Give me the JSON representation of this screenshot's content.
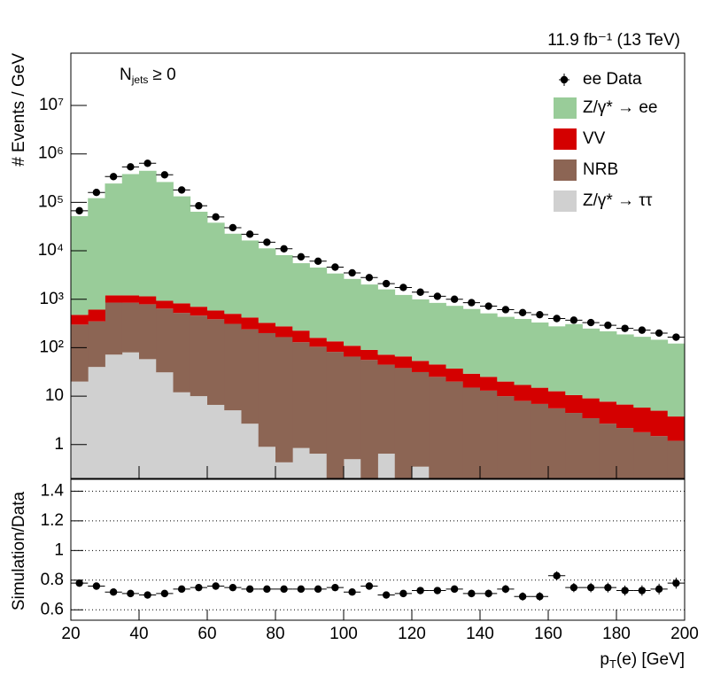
{
  "chart_data": [
    {
      "type": "stacked_histogram",
      "lumi": "11.9 fb⁻¹ (13 TeV)",
      "annotation": [
        "N",
        "jets",
        "≥ 0"
      ],
      "ylabel": "# Events / GeV",
      "log_y": true,
      "legend": "top-right",
      "bins": [
        20,
        25,
        30,
        35,
        40,
        45,
        50,
        55,
        60,
        65,
        70,
        75,
        80,
        85,
        90,
        95,
        100,
        105,
        110,
        115,
        120,
        125,
        130,
        135,
        140,
        145,
        150,
        155,
        160,
        165,
        170,
        175,
        180,
        185,
        190,
        195,
        200
      ],
      "ylim": [
        0.2,
        120000000
      ],
      "yticks": [
        1,
        10,
        {
          "value": 100,
          "label": "10²"
        },
        {
          "value": 1000,
          "label": "10³"
        },
        {
          "value": 10000,
          "label": "10⁴"
        },
        {
          "value": 100000,
          "label": "10⁵"
        },
        {
          "value": 1000000,
          "label": "10⁶"
        },
        {
          "value": 10000000,
          "label": "10⁷"
        }
      ],
      "series": [
        {
          "name": "Z/γ* → ττ",
          "color": "#d0d0d0",
          "values": [
            20,
            40,
            72,
            80,
            58,
            31,
            12,
            10,
            6.6,
            5.1,
            2.7,
            0.9,
            0.43,
            0.85,
            0.65,
            0,
            0.5,
            0,
            0.65,
            0,
            0.35,
            0,
            0,
            0,
            0,
            0,
            0,
            0,
            0,
            0,
            0,
            0,
            0,
            0,
            0,
            0
          ]
        },
        {
          "name": "NRB",
          "color": "#8c6554",
          "values": [
            280,
            310,
            780,
            770,
            730,
            610,
            510,
            450,
            380,
            305,
            237,
            199,
            165,
            129,
            104,
            82,
            65,
            56,
            44,
            38,
            31,
            25,
            20,
            15,
            13,
            10,
            8,
            6.9,
            5.6,
            4.5,
            3.5,
            2.7,
            2.2,
            1.8,
            1.5,
            1.2
          ]
        },
        {
          "name": "VV",
          "color": "#d40000",
          "values": [
            175,
            260,
            350,
            350,
            360,
            290,
            300,
            240,
            200,
            190,
            180,
            125,
            110,
            95,
            55,
            53,
            44,
            34,
            27,
            28,
            22,
            20,
            17,
            14,
            12,
            10,
            9,
            8,
            7,
            6,
            5.5,
            5,
            4.5,
            4,
            3.5,
            2.6
          ]
        },
        {
          "name": "Z/γ* → ee",
          "color": "#99cc99",
          "values": [
            51500,
            121400,
            243800,
            381800,
            446800,
            262000,
            132200,
            63300,
            37400,
            22000,
            15900,
            10900,
            7860,
            5320,
            4350,
            3265,
            2515,
            1926,
            1524,
            1159,
            941,
            795,
            693,
            600,
            486,
            413,
            375,
            316,
            263,
            296,
            239,
            210,
            181,
            162,
            141,
            118
          ]
        }
      ],
      "data": {
        "name": "ee Data",
        "color": "#000000",
        "values": [
          67000,
          160000,
          340000,
          540000,
          640000,
          370000,
          180000,
          85000,
          50000,
          30000,
          22000,
          15000,
          11000,
          7500,
          6100,
          4600,
          3500,
          2800,
          2100,
          1750,
          1400,
          1150,
          1000,
          850,
          720,
          610,
          530,
          480,
          400,
          370,
          330,
          290,
          250,
          230,
          200,
          165
        ]
      }
    },
    {
      "type": "ratio",
      "ylabel": "Simulation/Data",
      "xlabel": [
        "p",
        "T",
        "(e) [GeV]"
      ],
      "xlim": [
        20,
        200
      ],
      "xticks": [
        20,
        40,
        60,
        80,
        100,
        120,
        140,
        160,
        180,
        200
      ],
      "ylim": [
        0.53,
        1.48
      ],
      "yticks": [
        0.6,
        0.8,
        1,
        1.2,
        1.4
      ],
      "grid": true,
      "color": "#000000",
      "values": [
        0.78,
        0.76,
        0.72,
        0.71,
        0.7,
        0.71,
        0.74,
        0.75,
        0.76,
        0.75,
        0.74,
        0.74,
        0.74,
        0.74,
        0.74,
        0.75,
        0.72,
        0.76,
        0.7,
        0.71,
        0.73,
        0.73,
        0.74,
        0.71,
        0.71,
        0.74,
        0.69,
        0.69,
        0.83,
        0.75,
        0.75,
        0.75,
        0.73,
        0.73,
        0.74,
        0.78
      ],
      "errors": [
        0.015,
        0.012,
        0.01,
        0.01,
        0.01,
        0.01,
        0.01,
        0.012,
        0.012,
        0.013,
        0.014,
        0.015,
        0.015,
        0.016,
        0.017,
        0.018,
        0.019,
        0.02,
        0.02,
        0.021,
        0.022,
        0.023,
        0.024,
        0.025,
        0.026,
        0.027,
        0.028,
        0.029,
        0.03,
        0.031,
        0.032,
        0.033,
        0.034,
        0.035,
        0.036,
        0.037
      ]
    }
  ]
}
